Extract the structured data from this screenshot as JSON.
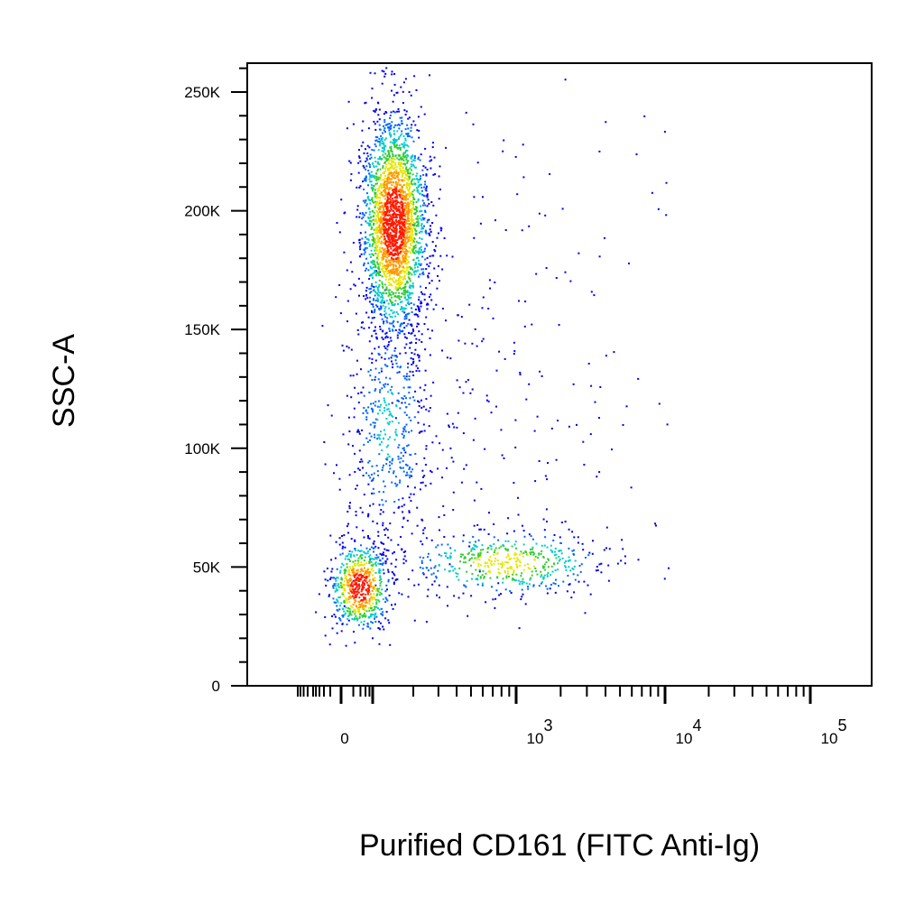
{
  "chart_data": {
    "type": "scatter",
    "title": "",
    "xlabel": "Purified CD161 (FITC Anti-Ig)",
    "ylabel": "SSC-A",
    "x_scale": "biexponential",
    "xlim": [
      -300,
      100000
    ],
    "ylim": [
      0,
      262144
    ],
    "x_ticks": [
      {
        "value": 0,
        "base": "0",
        "exp": ""
      },
      {
        "value": 1000,
        "base": "10",
        "exp": "3"
      },
      {
        "value": 10000,
        "base": "10",
        "exp": "4"
      },
      {
        "value": 100000,
        "base": "10",
        "exp": "5"
      }
    ],
    "y_ticks": [
      {
        "value": 0,
        "label": "0"
      },
      {
        "value": 50000,
        "label": "50K"
      },
      {
        "value": 100000,
        "label": "100K"
      },
      {
        "value": 150000,
        "label": "150K"
      },
      {
        "value": 200000,
        "label": "200K"
      },
      {
        "value": 250000,
        "label": "250K"
      }
    ],
    "color_scale": "density (blue-cyan-green-yellow-red)",
    "populations": [
      {
        "description": "CD161-negative high SSC",
        "x_center": 180,
        "y_center": 195000,
        "approx_fraction": 0.55
      },
      {
        "description": "CD161-negative low SSC",
        "x_center": 15,
        "y_center": 42000,
        "approx_fraction": 0.2
      },
      {
        "description": "CD161-positive low SSC",
        "x_center": 900,
        "y_center": 52000,
        "approx_fraction": 0.12
      },
      {
        "description": "intermediate bridge",
        "x_center": 120,
        "y_center": 110000,
        "approx_fraction": 0.13
      }
    ],
    "grid": false,
    "legend": "none"
  }
}
